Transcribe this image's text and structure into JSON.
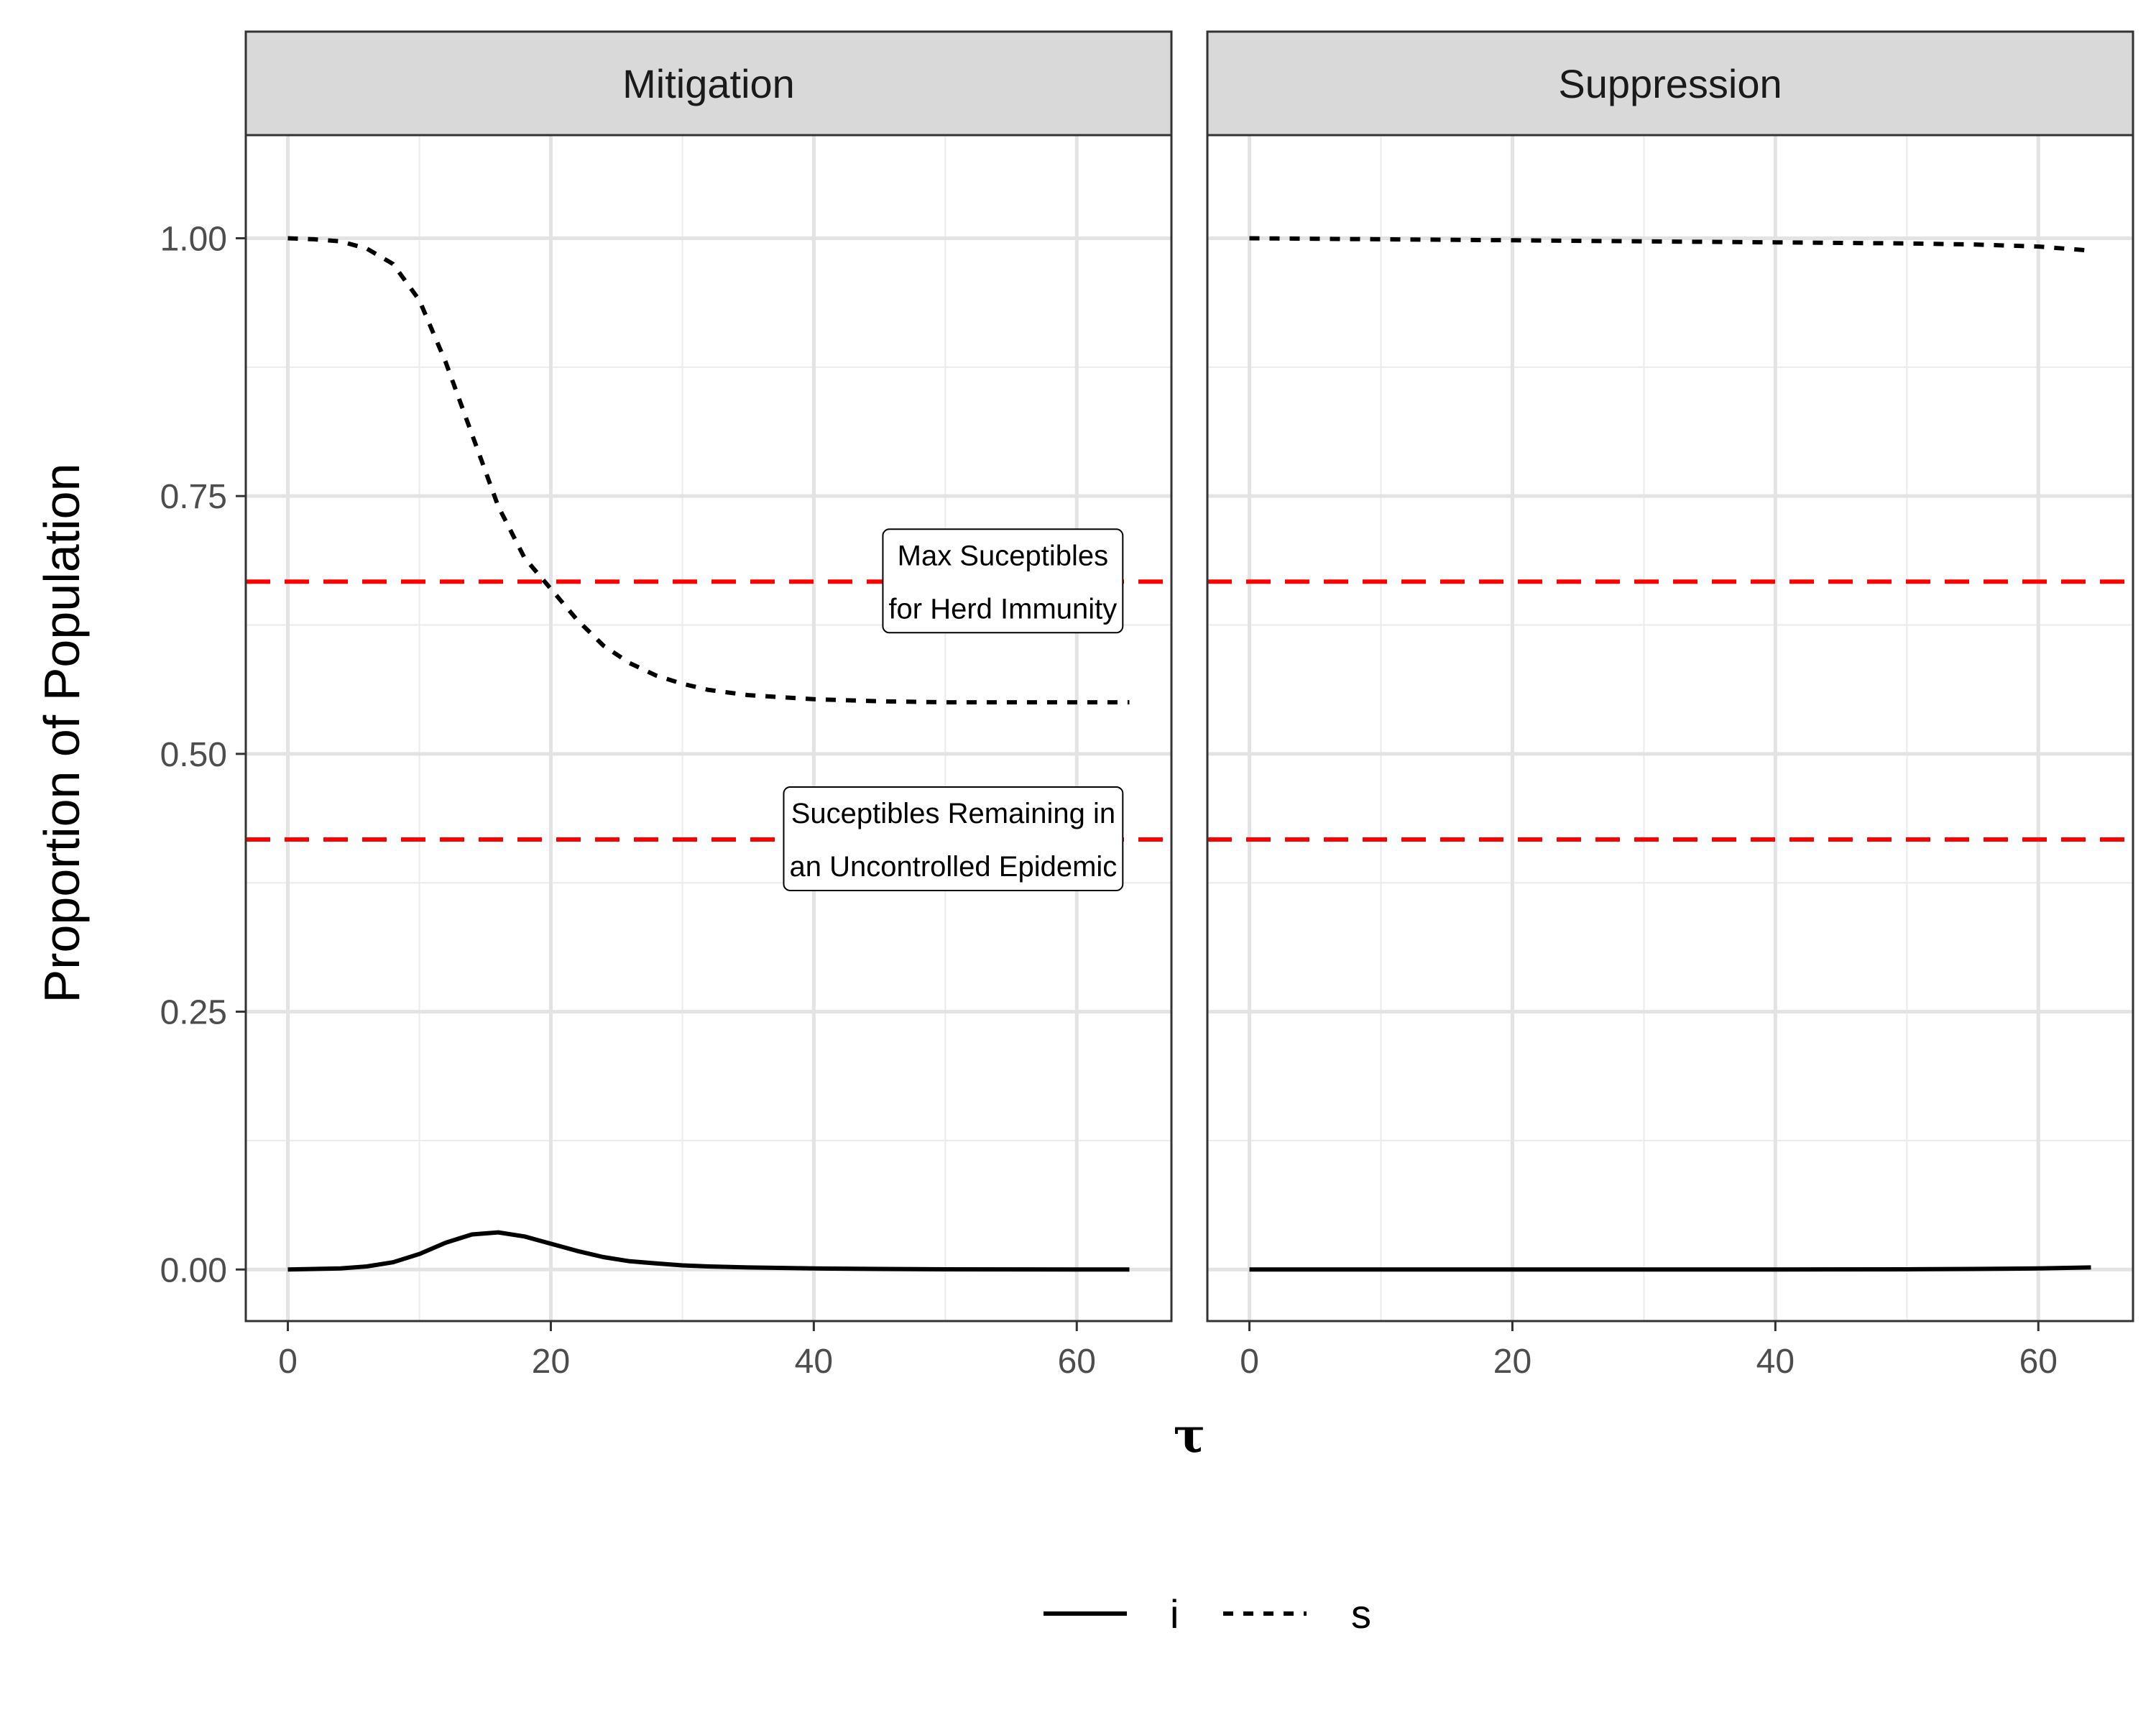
{
  "chart_data": {
    "type": "line",
    "xlabel": "τ",
    "ylabel": "Proportion of Population",
    "xlim": [
      -3.2,
      67.2
    ],
    "ylim": [
      -0.05,
      1.1
    ],
    "x_ticks": [
      0,
      20,
      40,
      60
    ],
    "x_tick_labels": [
      "0",
      "20",
      "40",
      "60"
    ],
    "x_minor_ticks": [
      10,
      30,
      50
    ],
    "y_ticks": [
      0,
      0.25,
      0.5,
      0.75,
      1.0
    ],
    "y_tick_labels": [
      "0.00",
      "0.25",
      "0.50",
      "0.75",
      "1.00"
    ],
    "y_minor_ticks": [
      0.125,
      0.375,
      0.625,
      0.875
    ],
    "grid": true,
    "legend_position": "bottom",
    "legend": [
      {
        "key": "i",
        "label": "i",
        "linetype": "solid"
      },
      {
        "key": "s",
        "label": "s",
        "linetype": "dotted"
      }
    ],
    "reference_lines": [
      {
        "y": 0.667,
        "color": "#ff0000",
        "linetype": "dashed"
      },
      {
        "y": 0.417,
        "color": "#ff0000",
        "linetype": "dashed"
      }
    ],
    "panels": [
      {
        "title": "Mitigation",
        "series": [
          {
            "name": "s",
            "linetype": "dotted",
            "x": [
              0,
              2,
              4,
              6,
              8,
              10,
              12,
              14,
              16,
              18,
              20,
              22,
              24,
              26,
              28,
              30,
              32,
              35,
              40,
              45,
              50,
              55,
              60,
              64
            ],
            "y": [
              1.0,
              0.999,
              0.997,
              0.99,
              0.975,
              0.94,
              0.88,
              0.81,
              0.74,
              0.69,
              0.66,
              0.63,
              0.605,
              0.588,
              0.576,
              0.568,
              0.562,
              0.557,
              0.553,
              0.551,
              0.55,
              0.55,
              0.55,
              0.55
            ]
          },
          {
            "name": "i",
            "linetype": "solid",
            "x": [
              0,
              2,
              4,
              6,
              8,
              10,
              12,
              14,
              16,
              18,
              20,
              22,
              24,
              26,
              28,
              30,
              32,
              35,
              40,
              45,
              50,
              55,
              60,
              64
            ],
            "y": [
              0.0,
              0.0005,
              0.001,
              0.003,
              0.007,
              0.015,
              0.026,
              0.034,
              0.036,
              0.032,
              0.025,
              0.018,
              0.012,
              0.008,
              0.006,
              0.004,
              0.003,
              0.002,
              0.001,
              0.0005,
              0.0002,
              0.0001,
              0.0,
              0.0
            ]
          }
        ],
        "annotations": [
          {
            "lines": [
              "Max Suceptibles",
              "for Herd Immunity"
            ],
            "x": 63.5,
            "y": 0.667
          },
          {
            "lines": [
              "Suceptibles Remaining in",
              "an Uncontrolled Epidemic"
            ],
            "x": 63.5,
            "y": 0.417
          }
        ]
      },
      {
        "title": "Suppression",
        "series": [
          {
            "name": "s",
            "linetype": "dotted",
            "x": [
              0,
              10,
              20,
              30,
              40,
              50,
              55,
              60,
              64
            ],
            "y": [
              1.0,
              0.999,
              0.998,
              0.997,
              0.996,
              0.995,
              0.994,
              0.992,
              0.988
            ]
          },
          {
            "name": "i",
            "linetype": "solid",
            "x": [
              0,
              10,
              20,
              30,
              40,
              50,
              55,
              60,
              64
            ],
            "y": [
              0.0,
              0.0,
              0.0,
              0.0,
              0.0,
              0.0002,
              0.0005,
              0.001,
              0.002
            ]
          }
        ],
        "annotations": []
      }
    ]
  }
}
